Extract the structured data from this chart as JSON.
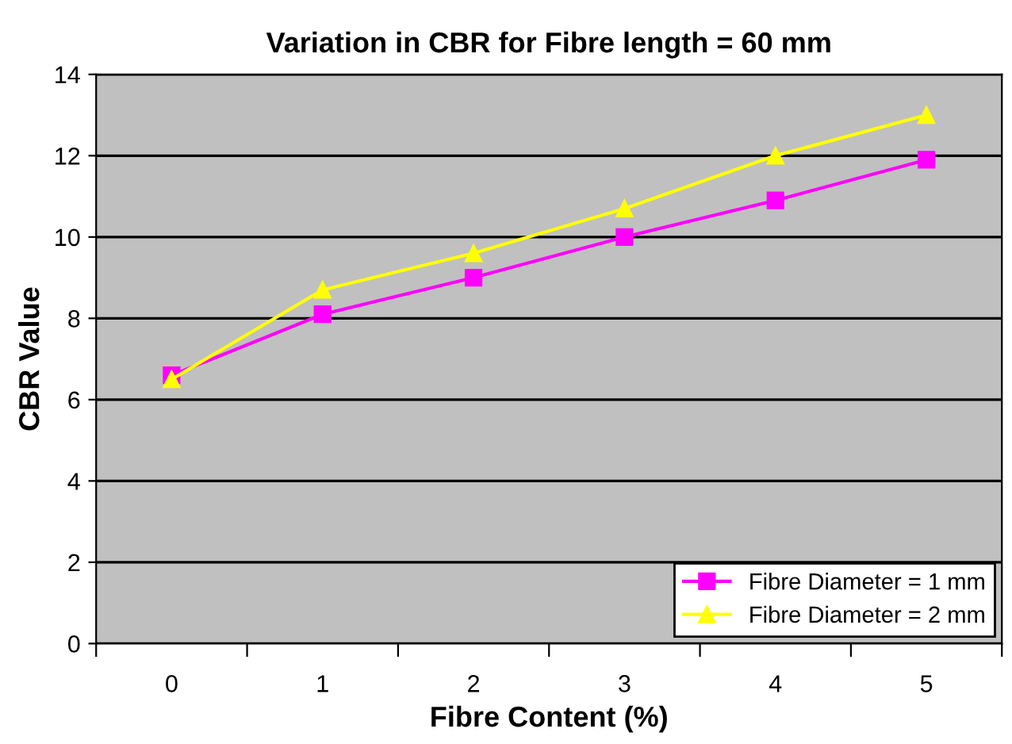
{
  "chart_data": {
    "type": "line",
    "title": "Variation in CBR for Fibre length = 60 mm",
    "xlabel": "Fibre Content (%)",
    "ylabel": "CBR Value",
    "categories": [
      "0",
      "1",
      "2",
      "3",
      "4",
      "5"
    ],
    "series": [
      {
        "name": "Fibre Diameter = 1 mm",
        "color": "#ff00ff",
        "marker": "square",
        "values": [
          6.6,
          8.1,
          9.0,
          10.0,
          10.9,
          11.9
        ]
      },
      {
        "name": "Fibre Diameter = 2 mm",
        "color": "#ffff00",
        "marker": "triangle",
        "values": [
          6.5,
          8.7,
          9.6,
          10.7,
          12.0,
          13.0
        ]
      }
    ],
    "ylim": [
      0,
      14
    ],
    "yticks": [
      0,
      2,
      4,
      6,
      8,
      10,
      12,
      14
    ],
    "grid": "y",
    "legend": "bottom right",
    "line_style": "solid"
  }
}
